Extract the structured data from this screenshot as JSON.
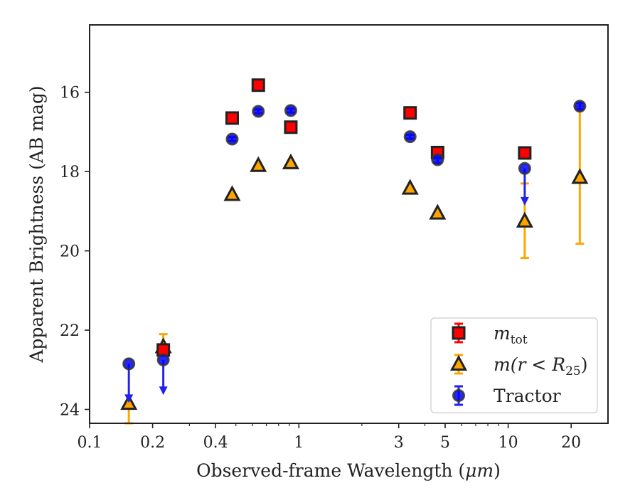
{
  "chart_data": {
    "type": "scatter",
    "xlabel_main": "Observed-frame Wavelength (",
    "xlabel_unit": "μm",
    "xlabel_end": ")",
    "ylabel": "Apparent Brightness (AB mag)",
    "x_scale": "log",
    "xlim": [
      0.1,
      30
    ],
    "ylim": [
      24.35,
      14.3
    ],
    "y_inverted": true,
    "grid": false,
    "legend_position": "lower-right",
    "x_ticks": [
      {
        "v": 0.1,
        "label": "0.1"
      },
      {
        "v": 0.2,
        "label": "0.2"
      },
      {
        "v": 0.4,
        "label": "0.4"
      },
      {
        "v": 1,
        "label": "1"
      },
      {
        "v": 3,
        "label": "3"
      },
      {
        "v": 5,
        "label": "5"
      },
      {
        "v": 10,
        "label": "10"
      },
      {
        "v": 20,
        "label": "20"
      }
    ],
    "y_ticks": [
      {
        "v": 16,
        "label": "16"
      },
      {
        "v": 18,
        "label": "18"
      },
      {
        "v": 20,
        "label": "20"
      },
      {
        "v": 22,
        "label": "22"
      },
      {
        "v": 24,
        "label": "24"
      }
    ],
    "series": [
      {
        "key": "mtot",
        "legend_main": "m",
        "legend_sub": "tot",
        "marker": "square",
        "face": "#ff0000",
        "edge": "#222222",
        "errcolor": "#ff0000",
        "points": [
          {
            "x": 0.225,
            "y": 22.5,
            "yerr": 0.1
          },
          {
            "x": 0.48,
            "y": 16.65,
            "yerr": 0.05
          },
          {
            "x": 0.64,
            "y": 15.82,
            "yerr": 0.05
          },
          {
            "x": 0.915,
            "y": 16.88,
            "yerr": 0.05
          },
          {
            "x": 3.4,
            "y": 16.52,
            "yerr": 0.05
          },
          {
            "x": 4.6,
            "y": 17.52,
            "yerr": 0.1
          },
          {
            "x": 12.0,
            "y": 17.53,
            "yerr": 0.1
          }
        ]
      },
      {
        "key": "mr25",
        "legend_main": "m",
        "legend_mid": "(r < R",
        "legend_sub": "25",
        "legend_end": ")",
        "marker": "triangle",
        "face": "#ffa500",
        "edge": "#222222",
        "errcolor": "#ffa500",
        "points": [
          {
            "x": 0.154,
            "y": 23.85,
            "lo": 23.85,
            "hi": 24.35
          },
          {
            "x": 0.225,
            "y": 22.42,
            "lo": 22.1,
            "hi": 22.6
          },
          {
            "x": 0.48,
            "y": 18.58
          },
          {
            "x": 0.64,
            "y": 17.85
          },
          {
            "x": 0.915,
            "y": 17.78
          },
          {
            "x": 3.4,
            "y": 18.42
          },
          {
            "x": 4.6,
            "y": 19.05
          },
          {
            "x": 12.0,
            "y": 19.25,
            "lo": 18.3,
            "hi": 20.18
          },
          {
            "x": 22.0,
            "y": 18.15,
            "lo": 16.35,
            "hi": 19.82
          }
        ]
      },
      {
        "key": "tractor",
        "legend_main": "Tractor",
        "marker": "circle",
        "face": "#0000ff",
        "edge": "#333333",
        "errcolor": "#2222ee",
        "points": [
          {
            "x": 0.154,
            "y": 22.85,
            "upper_limit": true,
            "arrow_to": 23.8
          },
          {
            "x": 0.225,
            "y": 22.75,
            "upper_limit": true,
            "arrow_to": 23.6
          },
          {
            "x": 0.48,
            "y": 17.18,
            "yerr": 0.05
          },
          {
            "x": 0.64,
            "y": 16.48,
            "yerr": 0.05
          },
          {
            "x": 0.915,
            "y": 16.46,
            "yerr": 0.05
          },
          {
            "x": 3.4,
            "y": 17.12,
            "yerr": 0.05
          },
          {
            "x": 4.6,
            "y": 17.7,
            "yerr": 0.08
          },
          {
            "x": 12.0,
            "y": 17.92,
            "upper_limit": true,
            "arrow_to": 18.82
          },
          {
            "x": 22.0,
            "y": 16.35,
            "yerr": 0.08
          }
        ]
      }
    ]
  }
}
